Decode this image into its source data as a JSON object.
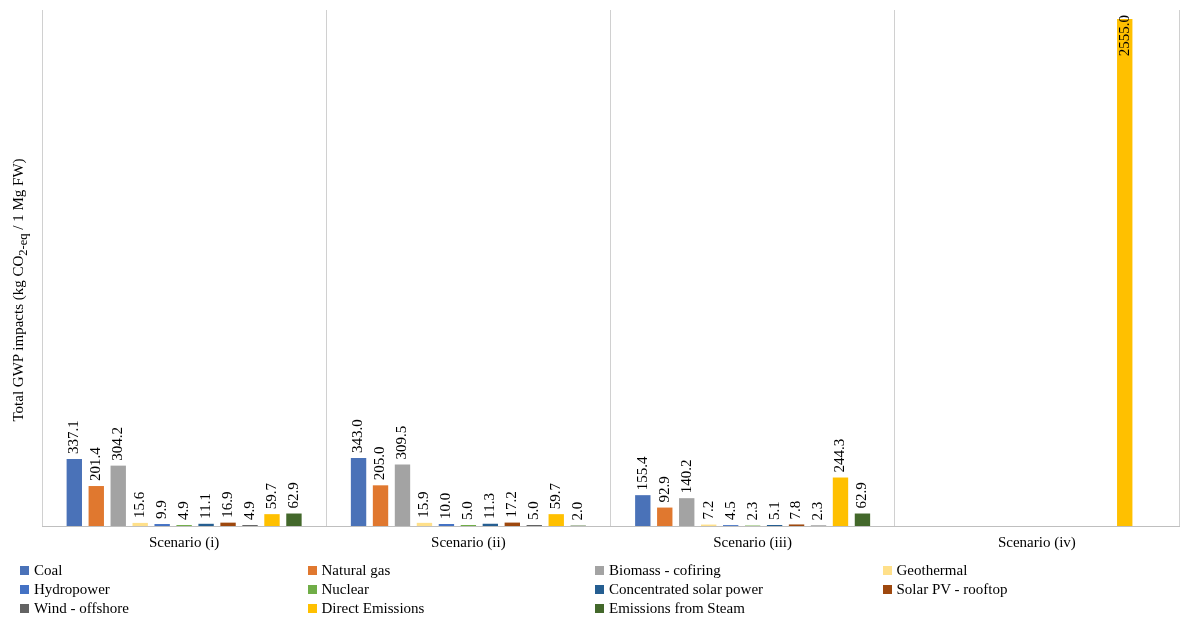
{
  "chart_data": {
    "type": "bar",
    "ylabel": "Total GWP impacts (kg CO$_{2-eq}$ / 1 Mg FW)",
    "categories": [
      "Scenario (i)",
      "Scenario (ii)",
      "Scenario (iii)",
      "Scenario (iv)"
    ],
    "series": [
      {
        "name": "Coal",
        "color": "#4a72b8",
        "values": [
          337.1,
          343.0,
          155.4,
          null
        ],
        "value_labels": [
          "337.1",
          "343.0",
          "155.4",
          null
        ]
      },
      {
        "name": "Natural gas",
        "color": "#e0782f",
        "values": [
          201.4,
          205.0,
          92.9,
          null
        ],
        "value_labels": [
          "201.4",
          "205.0",
          "92.9",
          null
        ]
      },
      {
        "name": "Biomass - cofiring",
        "color": "#a3a3a3",
        "values": [
          304.2,
          309.5,
          140.2,
          null
        ],
        "value_labels": [
          "304.2",
          "309.5",
          "140.2",
          null
        ]
      },
      {
        "name": "Geothermal",
        "color": "#ffe08a",
        "values": [
          15.6,
          15.9,
          7.2,
          null
        ],
        "value_labels": [
          "15.6",
          "15.9",
          "7.2",
          null
        ]
      },
      {
        "name": "Hydropower",
        "color": "#4472c4",
        "values": [
          9.9,
          10.0,
          4.5,
          null
        ],
        "value_labels": [
          "9.9",
          "10.0",
          "4.5",
          null
        ]
      },
      {
        "name": "Nuclear",
        "color": "#70ad47",
        "values": [
          4.9,
          5.0,
          2.3,
          null
        ],
        "value_labels": [
          "4.9",
          "5.0",
          "2.3",
          null
        ]
      },
      {
        "name": "Concentrated solar power",
        "color": "#255e91",
        "values": [
          11.1,
          11.3,
          5.1,
          null
        ],
        "value_labels": [
          "11.1",
          "11.3",
          "5.1",
          null
        ]
      },
      {
        "name": "Solar PV - rooftop",
        "color": "#9e480e",
        "values": [
          16.9,
          17.2,
          7.8,
          null
        ],
        "value_labels": [
          "16.9",
          "17.2",
          "7.8",
          null
        ]
      },
      {
        "name": "Wind - offshore",
        "color": "#636363",
        "values": [
          4.9,
          5.0,
          2.3,
          null
        ],
        "value_labels": [
          "4.9",
          "5.0",
          "2.3",
          null
        ]
      },
      {
        "name": "Direct Emissions",
        "color": "#ffc000",
        "values": [
          59.7,
          59.7,
          244.3,
          2555.0
        ],
        "value_labels": [
          "59.7",
          "59.7",
          "244.3",
          "2555.0"
        ]
      },
      {
        "name": "Emissions from Steam",
        "color": "#43682b",
        "values": [
          62.9,
          2.0,
          62.9,
          null
        ],
        "value_labels": [
          "62.9",
          "2.0",
          "62.9",
          null
        ]
      }
    ],
    "ylim": [
      0,
      2600
    ],
    "grid": "x",
    "legend": "bottom",
    "tick_labels": "x"
  }
}
